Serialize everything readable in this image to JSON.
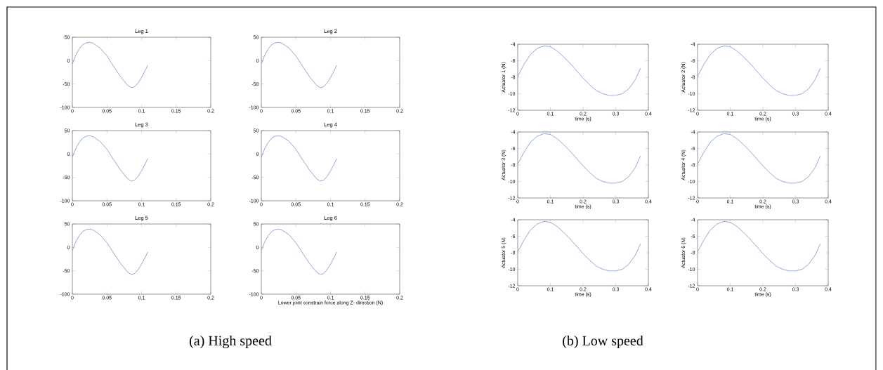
{
  "chart_data": [
    {
      "type": "line",
      "title": "Leg 1",
      "x": [
        0,
        0.005,
        0.01,
        0.015,
        0.02,
        0.025,
        0.03,
        0.04,
        0.05,
        0.06,
        0.07,
        0.08,
        0.085,
        0.09,
        0.095,
        0.1,
        0.105,
        0.109
      ],
      "values": [
        -7,
        12,
        25,
        34,
        38,
        39,
        37,
        27,
        10,
        -13,
        -35,
        -53,
        -58,
        -56,
        -48,
        -36,
        -22,
        -10
      ],
      "color": "#7f9ed4",
      "xlim": [
        0,
        0.2
      ],
      "ylim": [
        -100,
        50
      ],
      "xticks": [
        0,
        0.05,
        0.1,
        0.15,
        0.2
      ],
      "yticks": [
        -100,
        -50,
        0,
        50
      ]
    },
    {
      "type": "line",
      "title": "Leg 2",
      "x": [
        0,
        0.005,
        0.01,
        0.015,
        0.02,
        0.025,
        0.03,
        0.04,
        0.05,
        0.06,
        0.07,
        0.08,
        0.085,
        0.09,
        0.095,
        0.1,
        0.105,
        0.109
      ],
      "values": [
        -7,
        12,
        25,
        34,
        38,
        39,
        37,
        27,
        10,
        -13,
        -35,
        -53,
        -58,
        -56,
        -48,
        -36,
        -22,
        -10
      ],
      "color": "#7f9ed4",
      "xlim": [
        0,
        0.2
      ],
      "ylim": [
        -100,
        50
      ],
      "xticks": [
        0,
        0.05,
        0.1,
        0.15,
        0.2
      ],
      "yticks": [
        -100,
        -50,
        0,
        50
      ]
    },
    {
      "type": "line",
      "title": "Leg 3",
      "x": [
        0,
        0.005,
        0.01,
        0.015,
        0.02,
        0.025,
        0.03,
        0.04,
        0.05,
        0.06,
        0.07,
        0.08,
        0.085,
        0.09,
        0.095,
        0.1,
        0.105,
        0.109
      ],
      "values": [
        -7,
        12,
        25,
        34,
        38,
        39,
        37,
        27,
        10,
        -13,
        -35,
        -53,
        -58,
        -56,
        -48,
        -36,
        -22,
        -10
      ],
      "color": "#7f9ed4",
      "xlim": [
        0,
        0.2
      ],
      "ylim": [
        -100,
        50
      ],
      "xticks": [
        0,
        0.05,
        0.1,
        0.15,
        0.2
      ],
      "yticks": [
        -100,
        -50,
        0,
        50
      ]
    },
    {
      "type": "line",
      "title": "Leg 4",
      "x": [
        0,
        0.005,
        0.01,
        0.015,
        0.02,
        0.025,
        0.03,
        0.04,
        0.05,
        0.06,
        0.07,
        0.08,
        0.085,
        0.09,
        0.095,
        0.1,
        0.105,
        0.109
      ],
      "values": [
        -7,
        12,
        25,
        34,
        38,
        39,
        37,
        27,
        10,
        -13,
        -35,
        -53,
        -58,
        -56,
        -48,
        -36,
        -22,
        -10
      ],
      "color": "#7f9ed4",
      "xlim": [
        0,
        0.2
      ],
      "ylim": [
        -100,
        50
      ],
      "xticks": [
        0,
        0.05,
        0.1,
        0.15,
        0.2
      ],
      "yticks": [
        -100,
        -50,
        0,
        50
      ]
    },
    {
      "type": "line",
      "title": "Leg 5",
      "x": [
        0,
        0.005,
        0.01,
        0.015,
        0.02,
        0.025,
        0.03,
        0.04,
        0.05,
        0.06,
        0.07,
        0.08,
        0.085,
        0.09,
        0.095,
        0.1,
        0.105,
        0.109
      ],
      "values": [
        -7,
        12,
        25,
        34,
        38,
        39,
        37,
        27,
        10,
        -13,
        -35,
        -53,
        -58,
        -56,
        -48,
        -36,
        -22,
        -10
      ],
      "color": "#7f9ed4",
      "xlim": [
        0,
        0.2
      ],
      "ylim": [
        -100,
        50
      ],
      "xticks": [
        0,
        0.05,
        0.1,
        0.15,
        0.2
      ],
      "yticks": [
        -100,
        -50,
        0,
        50
      ],
      "annotations": [
        "(a) High speed"
      ]
    },
    {
      "type": "line",
      "title": "Leg 6",
      "xlabel": "Lower joint constrain force along Z- direction (N)",
      "x": [
        0,
        0.005,
        0.01,
        0.015,
        0.02,
        0.025,
        0.03,
        0.04,
        0.05,
        0.06,
        0.07,
        0.08,
        0.085,
        0.09,
        0.095,
        0.1,
        0.105,
        0.109
      ],
      "values": [
        -7,
        12,
        25,
        34,
        38,
        39,
        37,
        27,
        10,
        -13,
        -35,
        -53,
        -58,
        -56,
        -48,
        -36,
        -22,
        -10
      ],
      "color": "#7f9ed4",
      "xlim": [
        0,
        0.2
      ],
      "ylim": [
        -100,
        50
      ],
      "xticks": [
        0,
        0.05,
        0.1,
        0.15,
        0.2
      ],
      "yticks": [
        -100,
        -50,
        0,
        50
      ]
    },
    {
      "type": "line",
      "xlabel": "time (s)",
      "ylabel": "Actuator 1 (N)",
      "x": [
        0,
        0.02,
        0.04,
        0.06,
        0.08,
        0.1,
        0.12,
        0.14,
        0.16,
        0.18,
        0.2,
        0.22,
        0.24,
        0.26,
        0.28,
        0.3,
        0.32,
        0.34,
        0.36,
        0.376
      ],
      "values": [
        -7.9,
        -6.4,
        -5.2,
        -4.5,
        -4.2,
        -4.3,
        -4.8,
        -5.5,
        -6.3,
        -7.2,
        -8.1,
        -8.9,
        -9.6,
        -10,
        -10.2,
        -10.2,
        -10,
        -9.4,
        -8.3,
        -6.9
      ],
      "color": "#7f9ed4",
      "xlim": [
        0,
        0.4
      ],
      "ylim": [
        -12,
        -4
      ],
      "xticks": [
        0,
        0.1,
        0.2,
        0.3,
        0.4
      ],
      "yticks": [
        -12,
        -10,
        -8,
        -6,
        -4
      ]
    },
    {
      "type": "line",
      "xlabel": "time (s)",
      "ylabel": "Actuator 2 (N)",
      "x": [
        0,
        0.02,
        0.04,
        0.06,
        0.08,
        0.1,
        0.12,
        0.14,
        0.16,
        0.18,
        0.2,
        0.22,
        0.24,
        0.26,
        0.28,
        0.3,
        0.32,
        0.34,
        0.36,
        0.376
      ],
      "values": [
        -7.9,
        -6.4,
        -5.2,
        -4.5,
        -4.2,
        -4.3,
        -4.8,
        -5.5,
        -6.3,
        -7.2,
        -8.1,
        -8.9,
        -9.6,
        -10,
        -10.2,
        -10.2,
        -10,
        -9.4,
        -8.3,
        -6.9
      ],
      "color": "#7f9ed4",
      "xlim": [
        0,
        0.4
      ],
      "ylim": [
        -12,
        -4
      ],
      "xticks": [
        0,
        0.1,
        0.2,
        0.3,
        0.4
      ],
      "yticks": [
        -12,
        -10,
        -8,
        -6,
        -4
      ]
    },
    {
      "type": "line",
      "xlabel": "time (s)",
      "ylabel": "Actuator 3 (N)",
      "x": [
        0,
        0.02,
        0.04,
        0.06,
        0.08,
        0.1,
        0.12,
        0.14,
        0.16,
        0.18,
        0.2,
        0.22,
        0.24,
        0.26,
        0.28,
        0.3,
        0.32,
        0.34,
        0.36,
        0.376
      ],
      "values": [
        -7.9,
        -6.4,
        -5.2,
        -4.5,
        -4.2,
        -4.3,
        -4.8,
        -5.5,
        -6.3,
        -7.2,
        -8.1,
        -8.9,
        -9.6,
        -10,
        -10.2,
        -10.2,
        -10,
        -9.4,
        -8.3,
        -6.9
      ],
      "color": "#7f9ed4",
      "xlim": [
        0,
        0.4
      ],
      "ylim": [
        -12,
        -4
      ],
      "xticks": [
        0,
        0.1,
        0.2,
        0.3,
        0.4
      ],
      "yticks": [
        -12,
        -10,
        -8,
        -6,
        -4
      ]
    },
    {
      "type": "line",
      "xlabel": "time (s)",
      "ylabel": "Actuator 4 (N)",
      "x": [
        0,
        0.02,
        0.04,
        0.06,
        0.08,
        0.1,
        0.12,
        0.14,
        0.16,
        0.18,
        0.2,
        0.22,
        0.24,
        0.26,
        0.28,
        0.3,
        0.32,
        0.34,
        0.36,
        0.376
      ],
      "values": [
        -7.9,
        -6.4,
        -5.2,
        -4.5,
        -4.2,
        -4.3,
        -4.8,
        -5.5,
        -6.3,
        -7.2,
        -8.1,
        -8.9,
        -9.6,
        -10,
        -10.2,
        -10.2,
        -10,
        -9.4,
        -8.3,
        -6.9
      ],
      "color": "#7f9ed4",
      "xlim": [
        0,
        0.4
      ],
      "ylim": [
        -12,
        -4
      ],
      "xticks": [
        0,
        0.1,
        0.2,
        0.3,
        0.4
      ],
      "yticks": [
        -12,
        -10,
        -8,
        -6,
        -4
      ]
    },
    {
      "type": "line",
      "xlabel": "time (s)",
      "ylabel": "Actuator 5 (N)",
      "x": [
        0,
        0.02,
        0.04,
        0.06,
        0.08,
        0.1,
        0.12,
        0.14,
        0.16,
        0.18,
        0.2,
        0.22,
        0.24,
        0.26,
        0.28,
        0.3,
        0.32,
        0.34,
        0.36,
        0.376
      ],
      "values": [
        -7.9,
        -6.4,
        -5.2,
        -4.5,
        -4.2,
        -4.3,
        -4.8,
        -5.5,
        -6.3,
        -7.2,
        -8.1,
        -8.9,
        -9.6,
        -10,
        -10.2,
        -10.2,
        -10,
        -9.4,
        -8.3,
        -6.9
      ],
      "color": "#7f9ed4",
      "xlim": [
        0,
        0.4
      ],
      "ylim": [
        -12,
        -4
      ],
      "xticks": [
        0,
        0.1,
        0.2,
        0.3,
        0.4
      ],
      "yticks": [
        -12,
        -10,
        -8,
        -6,
        -4
      ],
      "annotations": [
        "(b) Low speed"
      ]
    },
    {
      "type": "line",
      "xlabel": "time (s)",
      "ylabel": "Actuator 6 (N)",
      "x": [
        0,
        0.02,
        0.04,
        0.06,
        0.08,
        0.1,
        0.12,
        0.14,
        0.16,
        0.18,
        0.2,
        0.22,
        0.24,
        0.26,
        0.28,
        0.3,
        0.32,
        0.34,
        0.36,
        0.376
      ],
      "values": [
        -7.9,
        -6.4,
        -5.2,
        -4.5,
        -4.2,
        -4.3,
        -4.8,
        -5.5,
        -6.3,
        -7.2,
        -8.1,
        -8.9,
        -9.6,
        -10,
        -10.2,
        -10.2,
        -10,
        -9.4,
        -8.3,
        -6.9
      ],
      "color": "#7f9ed4",
      "xlim": [
        0,
        0.4
      ],
      "ylim": [
        -12,
        -4
      ],
      "xticks": [
        0,
        0.1,
        0.2,
        0.3,
        0.4
      ],
      "yticks": [
        -12,
        -10,
        -8,
        -6,
        -4
      ]
    }
  ]
}
